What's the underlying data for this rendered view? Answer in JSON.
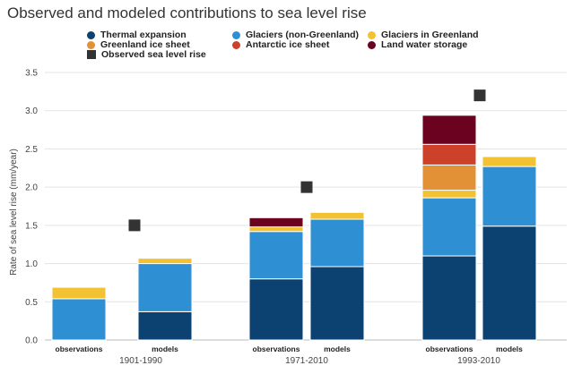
{
  "chart_data": {
    "type": "bar",
    "stacked": true,
    "title": "Observed and modeled contributions to sea level rise",
    "ylabel": "Rate of sea level rise (mm/year)",
    "xlabel": "",
    "ylim": [
      0,
      3.5
    ],
    "yticks": [
      0.0,
      0.5,
      1.0,
      1.5,
      2.0,
      2.5,
      3.0,
      3.5
    ],
    "ytick_labels": [
      "0.0",
      "0.5",
      "1.0",
      "1.5",
      "2.0",
      "2.5",
      "3.0",
      "3.5"
    ],
    "grid": true,
    "legend_position": "top",
    "groups": [
      {
        "label": "1901-1990",
        "bars": [
          {
            "label": "observations",
            "values": {
              "thermal": 0.0,
              "glaciers_ng": 0.54,
              "glaciers_g": 0.15,
              "greenland": 0.0,
              "antarctic": 0.0,
              "land": 0.0
            }
          },
          {
            "label": "models",
            "values": {
              "thermal": 0.37,
              "glaciers_ng": 0.63,
              "glaciers_g": 0.07,
              "greenland": 0.0,
              "antarctic": 0.0,
              "land": 0.0
            }
          }
        ],
        "observed": 1.5
      },
      {
        "label": "1971-2010",
        "bars": [
          {
            "label": "observations",
            "values": {
              "thermal": 0.8,
              "glaciers_ng": 0.62,
              "glaciers_g": 0.06,
              "greenland": 0.0,
              "antarctic": 0.0,
              "land": 0.12
            }
          },
          {
            "label": "models",
            "values": {
              "thermal": 0.96,
              "glaciers_ng": 0.62,
              "glaciers_g": 0.09,
              "greenland": 0.0,
              "antarctic": 0.0,
              "land": 0.0
            }
          }
        ],
        "observed": 2.0
      },
      {
        "label": "1993-2010",
        "bars": [
          {
            "label": "observations",
            "values": {
              "thermal": 1.1,
              "glaciers_ng": 0.76,
              "glaciers_g": 0.1,
              "greenland": 0.33,
              "antarctic": 0.27,
              "land": 0.38
            }
          },
          {
            "label": "models",
            "values": {
              "thermal": 1.49,
              "glaciers_ng": 0.78,
              "glaciers_g": 0.13,
              "greenland": 0.0,
              "antarctic": 0.0,
              "land": 0.0
            }
          }
        ],
        "observed": 3.2
      }
    ],
    "series": [
      {
        "key": "thermal",
        "name": "Thermal expansion",
        "color": "#0b4271"
      },
      {
        "key": "glaciers_ng",
        "name": "Glaciers (non-Greenland)",
        "color": "#2f8fd3"
      },
      {
        "key": "glaciers_g",
        "name": "Glaciers in Greenland",
        "color": "#f2c232"
      },
      {
        "key": "greenland",
        "name": "Greenland ice sheet",
        "color": "#e39136"
      },
      {
        "key": "antarctic",
        "name": "Antarctic ice sheet",
        "color": "#cc4129"
      },
      {
        "key": "land",
        "name": "Land water storage",
        "color": "#6a0220"
      }
    ],
    "observed_marker": {
      "name": "Observed sea level rise",
      "color": "#333333"
    }
  }
}
